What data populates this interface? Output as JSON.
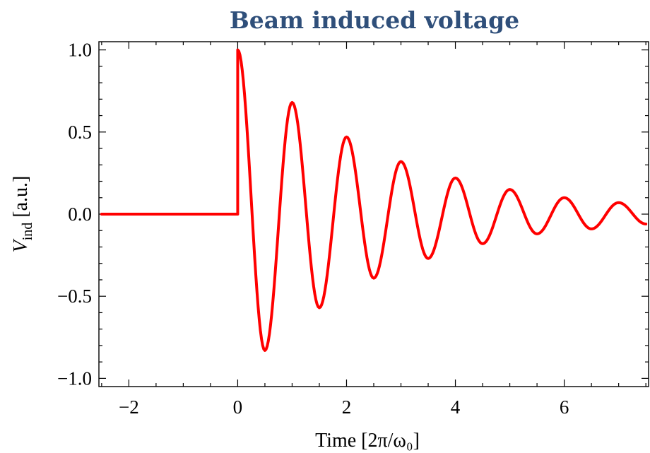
{
  "chart_data": {
    "type": "line",
    "title": "Beam induced voltage",
    "xlabel": "Time [2π/ω₀]",
    "ylabel_main": "V",
    "ylabel_sub": "ind",
    "ylabel_unit": " [a.u.]",
    "xlim": [
      -2.55,
      7.55
    ],
    "ylim": [
      -1.05,
      1.05
    ],
    "xticks": [
      -2,
      0,
      2,
      4,
      6
    ],
    "xtick_labels": [
      "−2",
      "0",
      "2",
      "4",
      "6"
    ],
    "yticks": [
      1.0,
      0.5,
      0.0,
      -0.5,
      -1.0
    ],
    "ytick_labels": [
      "1.0",
      "0.5",
      "0.0",
      "−0.5",
      "−1.0"
    ],
    "grid": false,
    "series": [
      {
        "color": "#ff0000",
        "x": [
          -2.5,
          0.0,
          0.0,
          0.5,
          1.0,
          1.5,
          2.0,
          2.5,
          3.0,
          3.5,
          4.0,
          4.5,
          5.0,
          5.5,
          6.0,
          6.5,
          7.0,
          7.5
        ],
        "y": [
          0.0,
          0.0,
          1.0,
          -0.83,
          0.68,
          -0.57,
          0.47,
          -0.39,
          0.32,
          -0.27,
          0.22,
          -0.18,
          0.15,
          -0.12,
          0.1,
          -0.09,
          0.07,
          -0.06
        ]
      }
    ]
  }
}
